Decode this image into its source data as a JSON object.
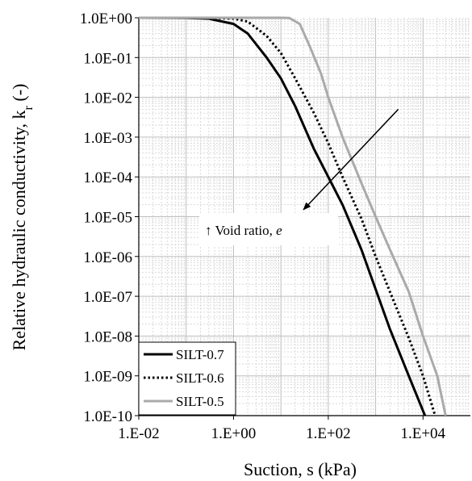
{
  "chart_data": {
    "type": "line",
    "xlabel": "Suction, s (kPa)",
    "ylabel_main": "Relative hydraulic conductivity, k",
    "ylabel_sub": "r",
    "ylabel_tail": " (-)",
    "x_scale": "log",
    "y_scale": "log",
    "xlim": [
      0.01,
      100000
    ],
    "ylim": [
      1e-10,
      1
    ],
    "grid": true,
    "legend_position": "bottom-left",
    "x_tick_labels": [
      "1.E-02",
      "1.E+00",
      "1.E+02",
      "1.E+04"
    ],
    "x_tick_values": [
      0.01,
      1,
      100,
      10000
    ],
    "y_tick_labels": [
      "1.0E+00",
      "1.0E-01",
      "1.0E-02",
      "1.0E-03",
      "1.0E-04",
      "1.0E-05",
      "1.0E-06",
      "1.0E-07",
      "1.0E-08",
      "1.0E-09",
      "1.0E-10"
    ],
    "y_tick_values": [
      1,
      0.1,
      0.01,
      0.001,
      0.0001,
      1e-05,
      1e-06,
      1e-07,
      1e-08,
      1e-09,
      1e-10
    ],
    "annotation": {
      "arrow_glyph": "↑",
      "text": " Void ratio, ",
      "symbol": "e",
      "arrow_from": [
        3000,
        0.005
      ],
      "arrow_to": [
        30,
        1.5e-05
      ]
    },
    "series": [
      {
        "name": "SILT-0.7",
        "color": "#000000",
        "dash": "solid",
        "points": [
          [
            0.01,
            1
          ],
          [
            0.1,
            0.99
          ],
          [
            0.3,
            0.95
          ],
          [
            1,
            0.7
          ],
          [
            2,
            0.4
          ],
          [
            5,
            0.1
          ],
          [
            10,
            0.03
          ],
          [
            20,
            0.006
          ],
          [
            50,
            0.0005
          ],
          [
            100,
            0.0001
          ],
          [
            200,
            2e-05
          ],
          [
            500,
            1.5e-06
          ],
          [
            1000,
            1.5e-07
          ],
          [
            2000,
            1.5e-08
          ],
          [
            5000,
            1e-09
          ],
          [
            11000,
            1e-10
          ]
        ]
      },
      {
        "name": "SILT-0.6",
        "color": "#000000",
        "dash": "dotted",
        "points": [
          [
            0.01,
            1
          ],
          [
            0.3,
            0.995
          ],
          [
            1,
            0.95
          ],
          [
            2,
            0.8
          ],
          [
            5,
            0.35
          ],
          [
            10,
            0.13
          ],
          [
            20,
            0.03
          ],
          [
            50,
            0.004
          ],
          [
            100,
            0.0007
          ],
          [
            200,
            0.0001
          ],
          [
            500,
            9e-06
          ],
          [
            1000,
            1e-06
          ],
          [
            2000,
            1.3e-07
          ],
          [
            5000,
            9e-09
          ],
          [
            10000,
            1e-09
          ],
          [
            18000,
            1e-10
          ]
        ]
      },
      {
        "name": "SILT-0.5",
        "color": "#aaaaaa",
        "dash": "solid",
        "points": [
          [
            0.01,
            1
          ],
          [
            10,
            1
          ],
          [
            15,
            0.99
          ],
          [
            25,
            0.7
          ],
          [
            40,
            0.2
          ],
          [
            70,
            0.04
          ],
          [
            100,
            0.01
          ],
          [
            200,
            0.001
          ],
          [
            500,
            7e-05
          ],
          [
            1000,
            1e-05
          ],
          [
            2000,
            1.5e-06
          ],
          [
            5000,
            1.3e-07
          ],
          [
            10000,
            1e-08
          ],
          [
            20000,
            1e-09
          ],
          [
            30000,
            1e-10
          ]
        ]
      }
    ]
  }
}
